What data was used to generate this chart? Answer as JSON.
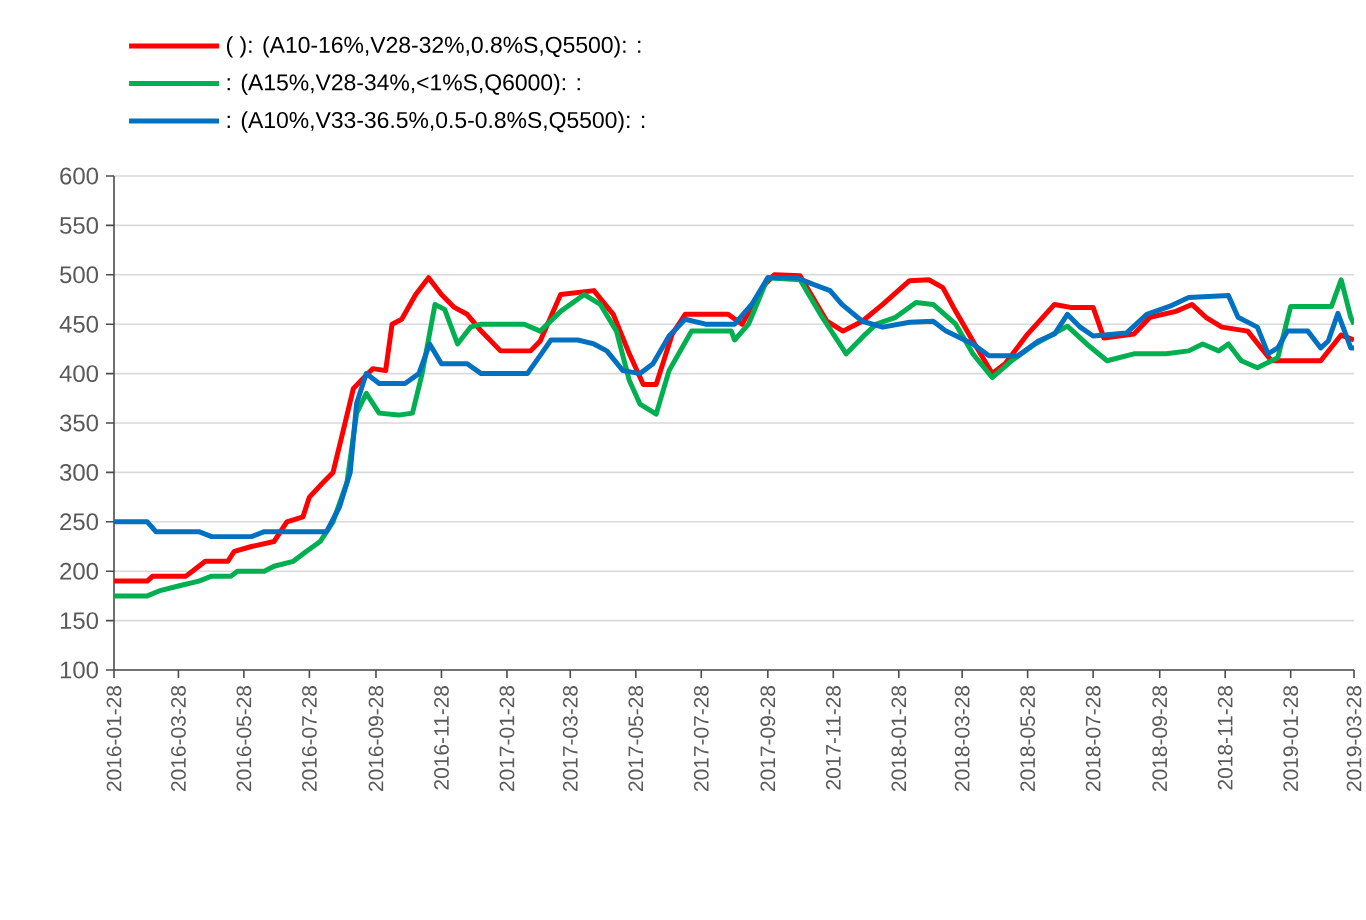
{
  "chart_data": {
    "type": "line",
    "legend": "top",
    "grid": "y",
    "marker": "none",
    "line_style": "solid",
    "xlim": [
      "2016-01-28",
      "2019-03-28"
    ],
    "ylim": [
      100,
      600
    ],
    "yticks": [
      100,
      150,
      200,
      250,
      300,
      350,
      400,
      450,
      500,
      550,
      600
    ],
    "xticks": [
      "2016-01-28",
      "2016-03-28",
      "2016-05-28",
      "2016-07-28",
      "2016-09-28",
      "2016-11-28",
      "2017-01-28",
      "2017-03-28",
      "2017-05-28",
      "2017-07-28",
      "2017-09-28",
      "2017-11-28",
      "2018-01-28",
      "2018-03-28",
      "2018-05-28",
      "2018-07-28",
      "2018-09-28",
      "2018-11-28",
      "2019-01-28",
      "2019-03-28"
    ],
    "series": [
      {
        "name": "( ): (A10-16%,V28-32%,0.8%S,Q5500): :",
        "color": "#ff0000",
        "x": [
          "2016-01-28",
          "2016-02-28",
          "2016-03-04",
          "2016-04-04",
          "2016-04-10",
          "2016-04-22",
          "2016-05-13",
          "2016-05-19",
          "2016-06-04",
          "2016-06-25",
          "2016-07-07",
          "2016-07-22",
          "2016-07-28",
          "2016-08-10",
          "2016-08-19",
          "2016-08-28",
          "2016-09-07",
          "2016-09-16",
          "2016-09-25",
          "2016-10-07",
          "2016-10-13",
          "2016-10-22",
          "2016-11-04",
          "2016-11-16",
          "2016-11-28",
          "2016-12-10",
          "2016-12-22",
          "2017-01-04",
          "2017-01-22",
          "2017-02-19",
          "2017-02-28",
          "2017-03-19",
          "2017-04-19",
          "2017-05-07",
          "2017-05-22",
          "2017-06-04",
          "2017-06-16",
          "2017-07-01",
          "2017-07-13",
          "2017-08-22",
          "2017-09-04",
          "2017-09-25",
          "2017-10-04",
          "2017-10-28",
          "2017-11-22",
          "2017-12-07",
          "2017-12-25",
          "2018-01-13",
          "2018-02-07",
          "2018-02-25",
          "2018-03-10",
          "2018-03-22",
          "2018-04-07",
          "2018-04-25",
          "2018-05-07",
          "2018-05-28",
          "2018-06-22",
          "2018-07-07",
          "2018-07-28",
          "2018-08-07",
          "2018-09-04",
          "2018-09-19",
          "2018-10-13",
          "2018-10-28",
          "2018-11-10",
          "2018-11-25",
          "2018-12-19",
          "2019-01-10",
          "2019-02-25",
          "2019-03-16",
          "2019-03-28"
        ],
        "values": [
          190,
          190,
          195,
          195,
          200,
          210,
          210,
          220,
          225,
          230,
          250,
          255,
          275,
          290,
          300,
          340,
          385,
          395,
          405,
          403,
          450,
          455,
          480,
          497,
          480,
          467,
          460,
          443,
          423,
          423,
          433,
          480,
          484,
          460,
          420,
          389,
          389,
          440,
          460,
          460,
          450,
          490,
          500,
          499,
          453,
          443,
          453,
          470,
          494,
          495,
          487,
          463,
          433,
          400,
          410,
          440,
          470,
          467,
          467,
          436,
          440,
          457,
          463,
          470,
          457,
          447,
          443,
          413,
          413,
          439,
          434
        ]
      },
      {
        "name": ": (A15%,V28-34%,<1%S,Q6000): :",
        "color": "#00b050",
        "x": [
          "2016-01-28",
          "2016-02-28",
          "2016-03-10",
          "2016-03-28",
          "2016-04-16",
          "2016-04-28",
          "2016-05-16",
          "2016-05-22",
          "2016-06-16",
          "2016-06-25",
          "2016-07-13",
          "2016-07-25",
          "2016-08-07",
          "2016-08-19",
          "2016-09-01",
          "2016-09-10",
          "2016-09-19",
          "2016-10-01",
          "2016-10-19",
          "2016-11-01",
          "2016-11-10",
          "2016-11-22",
          "2016-12-01",
          "2016-12-13",
          "2016-12-25",
          "2017-01-04",
          "2017-02-13",
          "2017-02-28",
          "2017-03-19",
          "2017-04-10",
          "2017-04-25",
          "2017-05-10",
          "2017-05-22",
          "2017-06-01",
          "2017-06-16",
          "2017-06-28",
          "2017-07-10",
          "2017-07-19",
          "2017-08-25",
          "2017-08-28",
          "2017-09-10",
          "2017-09-28",
          "2017-10-28",
          "2017-11-16",
          "2017-12-10",
          "2017-12-28",
          "2018-01-07",
          "2018-01-25",
          "2018-02-13",
          "2018-03-01",
          "2018-03-22",
          "2018-04-07",
          "2018-04-25",
          "2018-05-13",
          "2018-06-04",
          "2018-07-04",
          "2018-07-22",
          "2018-08-10",
          "2018-09-04",
          "2018-10-04",
          "2018-10-25",
          "2018-11-07",
          "2018-11-22",
          "2018-12-01",
          "2018-12-13",
          "2018-12-28",
          "2019-01-16",
          "2019-01-28",
          "2019-03-07",
          "2019-03-16",
          "2019-03-25",
          "2019-03-28"
        ],
        "values": [
          175,
          175,
          180,
          185,
          190,
          195,
          195,
          200,
          200,
          205,
          210,
          220,
          230,
          250,
          290,
          360,
          380,
          360,
          358,
          360,
          400,
          470,
          465,
          430,
          447,
          450,
          450,
          443,
          463,
          480,
          470,
          443,
          393,
          369,
          359,
          403,
          426,
          443,
          443,
          434,
          450,
          497,
          495,
          460,
          420,
          440,
          450,
          457,
          472,
          470,
          450,
          420,
          396,
          413,
          430,
          448,
          430,
          413,
          420,
          420,
          423,
          430,
          423,
          430,
          413,
          406,
          416,
          468,
          468,
          495,
          457,
          450
        ]
      },
      {
        "name": ": (A10%,V33-36.5%,0.5-0.8%S,Q5500): :",
        "color": "#0070c0",
        "x": [
          "2016-01-28",
          "2016-02-28",
          "2016-03-07",
          "2016-04-16",
          "2016-04-28",
          "2016-06-04",
          "2016-06-16",
          "2016-08-13",
          "2016-08-25",
          "2016-09-04",
          "2016-09-10",
          "2016-09-19",
          "2016-10-01",
          "2016-10-25",
          "2016-11-07",
          "2016-11-17",
          "2016-11-28",
          "2016-12-22",
          "2017-01-04",
          "2017-02-16",
          "2017-03-01",
          "2017-03-10",
          "2017-04-04",
          "2017-04-19",
          "2017-05-01",
          "2017-05-16",
          "2017-06-01",
          "2017-06-13",
          "2017-06-28",
          "2017-07-13",
          "2017-08-01",
          "2017-08-28",
          "2017-09-13",
          "2017-09-28",
          "2017-10-25",
          "2017-11-10",
          "2017-11-25",
          "2017-12-06",
          "2017-12-25",
          "2018-01-13",
          "2018-02-07",
          "2018-03-01",
          "2018-03-13",
          "2018-04-07",
          "2018-04-22",
          "2018-05-19",
          "2018-06-07",
          "2018-06-22",
          "2018-07-04",
          "2018-07-16",
          "2018-07-28",
          "2018-08-28",
          "2018-09-16",
          "2018-10-07",
          "2018-10-25",
          "2018-12-01",
          "2018-12-10",
          "2018-12-28",
          "2019-01-07",
          "2019-01-16",
          "2019-01-25",
          "2019-02-13",
          "2019-02-25",
          "2019-03-04",
          "2019-03-13",
          "2019-03-25",
          "2019-03-28"
        ],
        "values": [
          250,
          250,
          240,
          240,
          235,
          235,
          240,
          240,
          265,
          300,
          370,
          400,
          390,
          390,
          400,
          430,
          410,
          410,
          400,
          400,
          420,
          434,
          434,
          430,
          423,
          403,
          400,
          410,
          438,
          455,
          450,
          450,
          470,
          497,
          497,
          490,
          484,
          470,
          453,
          447,
          452,
          453,
          443,
          430,
          418,
          418,
          433,
          440,
          460,
          447,
          438,
          441,
          460,
          468,
          477,
          479,
          457,
          447,
          420,
          426,
          443,
          443,
          426,
          433,
          461,
          426,
          426
        ]
      }
    ]
  }
}
